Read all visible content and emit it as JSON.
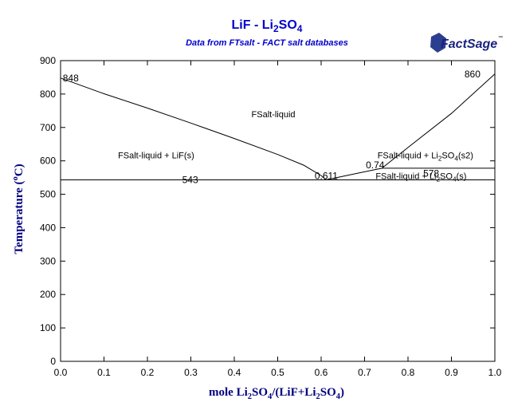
{
  "chart_data": {
    "type": "line",
    "title": {
      "parts": [
        {
          "text": "LiF - Li",
          "sub": false
        },
        {
          "text": "2",
          "sub": true
        },
        {
          "text": "SO",
          "sub": false
        },
        {
          "text": "4",
          "sub": true
        }
      ]
    },
    "subtitle": "Data from FTsalt - FACT salt databases",
    "logo": {
      "text": "FactSage",
      "tm": "™"
    },
    "xlabel": {
      "parts": [
        {
          "text": "mole Li",
          "sub": false
        },
        {
          "text": "2",
          "sub": true
        },
        {
          "text": "SO",
          "sub": false
        },
        {
          "text": "4",
          "sub": true
        },
        {
          "text": "/(LiF+Li",
          "sub": false
        },
        {
          "text": "2",
          "sub": true
        },
        {
          "text": "SO",
          "sub": false
        },
        {
          "text": "4",
          "sub": true
        },
        {
          "text": ")",
          "sub": false
        }
      ]
    },
    "ylabel": {
      "parts": [
        {
          "text": "Temperature (",
          "sup": false
        },
        {
          "text": "o",
          "sup": true
        },
        {
          "text": "C)",
          "sup": false
        }
      ]
    },
    "xlim": [
      0,
      1
    ],
    "ylim": [
      0,
      900
    ],
    "xticks": [
      0,
      0.1,
      0.2,
      0.3,
      0.4,
      0.5,
      0.6,
      0.7,
      0.8,
      0.9,
      1.0
    ],
    "xtick_labels": [
      "0.0",
      "0.1",
      "0.2",
      "0.3",
      "0.4",
      "0.5",
      "0.6",
      "0.7",
      "0.8",
      "0.9",
      "1.0"
    ],
    "yticks": [
      0,
      100,
      200,
      300,
      400,
      500,
      600,
      700,
      800,
      900
    ],
    "ytick_labels": [
      "0",
      "100",
      "200",
      "300",
      "400",
      "500",
      "600",
      "700",
      "800",
      "900"
    ],
    "grid": false,
    "series": [
      {
        "x": [
          0,
          0.1,
          0.2,
          0.3,
          0.4,
          0.5,
          0.56,
          0.6,
          0.611
        ],
        "y": [
          848,
          801,
          758,
          713,
          667,
          619,
          587,
          556,
          543
        ]
      },
      {
        "x": [
          0.611,
          0.68,
          0.74
        ],
        "y": [
          543,
          562,
          578
        ]
      },
      {
        "x": [
          0.74,
          0.8,
          0.9,
          1.0
        ],
        "y": [
          578,
          640,
          742,
          860
        ]
      },
      {
        "x": [
          0,
          0.611
        ],
        "y": [
          543,
          543
        ]
      },
      {
        "x": [
          0.611,
          1.0
        ],
        "y": [
          543,
          543
        ]
      },
      {
        "x": [
          0.74,
          1.0
        ],
        "y": [
          578,
          578
        ]
      }
    ],
    "point_labels": [
      {
        "text": "848",
        "x": 0.005,
        "y": 848
      },
      {
        "text": "860",
        "x": 0.93,
        "y": 860
      },
      {
        "text": "543",
        "x": 0.28,
        "y": 543
      },
      {
        "text": "0.611",
        "x": 0.585,
        "y": 555
      },
      {
        "text": "0.74",
        "x": 0.703,
        "y": 587
      },
      {
        "text": "578",
        "x": 0.835,
        "y": 562
      }
    ],
    "region_labels": [
      {
        "parts": [
          {
            "text": "FSalt-liquid",
            "sub": false
          }
        ],
        "x": 0.49,
        "y": 740
      },
      {
        "parts": [
          {
            "text": "FSalt-liquid + LiF(s)",
            "sub": false
          }
        ],
        "x": 0.22,
        "y": 617
      },
      {
        "parts": [
          {
            "text": "FSalt-liquid + Li",
            "sub": false
          },
          {
            "text": "2",
            "sub": true
          },
          {
            "text": "SO",
            "sub": false
          },
          {
            "text": "4",
            "sub": true
          },
          {
            "text": "(s2)",
            "sub": false
          }
        ],
        "x": 0.84,
        "y": 617
      },
      {
        "parts": [
          {
            "text": "FSalt-liquid + Li",
            "sub": false
          },
          {
            "text": "2",
            "sub": true
          },
          {
            "text": "SO",
            "sub": false
          },
          {
            "text": "4",
            "sub": true
          },
          {
            "text": "(s)",
            "sub": false
          }
        ],
        "x": 0.83,
        "y": 555
      }
    ],
    "colors": {
      "title": "#0000cc",
      "axis_label": "#000080",
      "line": "#000000",
      "logo": "#1a237e"
    }
  }
}
